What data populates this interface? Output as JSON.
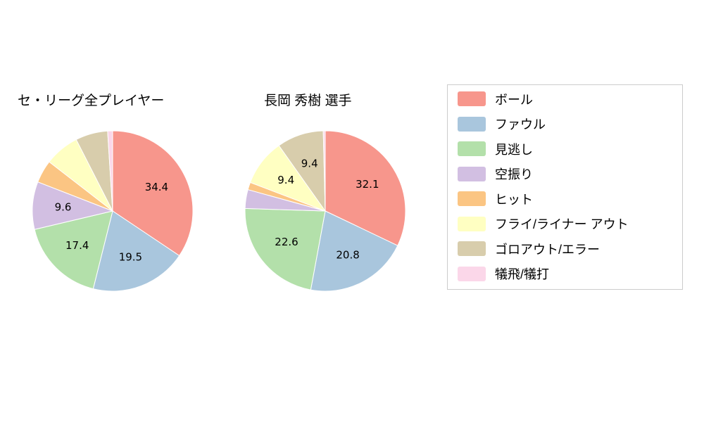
{
  "page": {
    "background": "#ffffff"
  },
  "legend": {
    "border_color": "#cccccc",
    "items": [
      {
        "label": "ボール",
        "color": "#f7968c"
      },
      {
        "label": "ファウル",
        "color": "#a9c6dd"
      },
      {
        "label": "見逃し",
        "color": "#b3e0aa"
      },
      {
        "label": "空振り",
        "color": "#d2bfe2"
      },
      {
        "label": "ヒット",
        "color": "#fbc583"
      },
      {
        "label": "フライ/ライナー アウト",
        "color": "#ffffc2"
      },
      {
        "label": "ゴロアウト/エラー",
        "color": "#d8cdac"
      },
      {
        "label": "犠飛/犠打",
        "color": "#fbd7e9"
      }
    ]
  },
  "chart_data": [
    {
      "type": "pie",
      "title": "セ・リーグ全プレイヤー",
      "categories": [
        "ボール",
        "ファウル",
        "見逃し",
        "空振り",
        "ヒット",
        "フライ/ライナー アウト",
        "ゴロアウト/エラー",
        "犠飛/犠打"
      ],
      "values": [
        34.4,
        19.5,
        17.4,
        9.6,
        4.6,
        7.0,
        6.5,
        1.0
      ],
      "colors": [
        "#f7968c",
        "#a9c6dd",
        "#b3e0aa",
        "#d2bfe2",
        "#fbc583",
        "#ffffc2",
        "#d8cdac",
        "#fbd7e9"
      ],
      "labeled_values": [
        34.4,
        19.5,
        17.4,
        9.6
      ],
      "label_min_value": 9,
      "start_angle": "top",
      "direction": "clockwise",
      "slice_stroke": "#ffffff",
      "legend_position": "right"
    },
    {
      "type": "pie",
      "title": "長岡 秀樹  選手",
      "categories": [
        "ボール",
        "ファウル",
        "見逃し",
        "空振り",
        "ヒット",
        "フライ/ライナー アウト",
        "ゴロアウト/エラー",
        "犠飛/犠打"
      ],
      "values": [
        32.1,
        20.8,
        22.6,
        3.8,
        1.5,
        9.4,
        9.4,
        0.4
      ],
      "colors": [
        "#f7968c",
        "#a9c6dd",
        "#b3e0aa",
        "#d2bfe2",
        "#fbc583",
        "#ffffc2",
        "#d8cdac",
        "#fbd7e9"
      ],
      "labeled_values": [
        32.1,
        20.8,
        22.6,
        9.4,
        9.4
      ],
      "label_min_value": 9,
      "start_angle": "top",
      "direction": "clockwise",
      "slice_stroke": "#ffffff",
      "legend_position": "right"
    }
  ]
}
